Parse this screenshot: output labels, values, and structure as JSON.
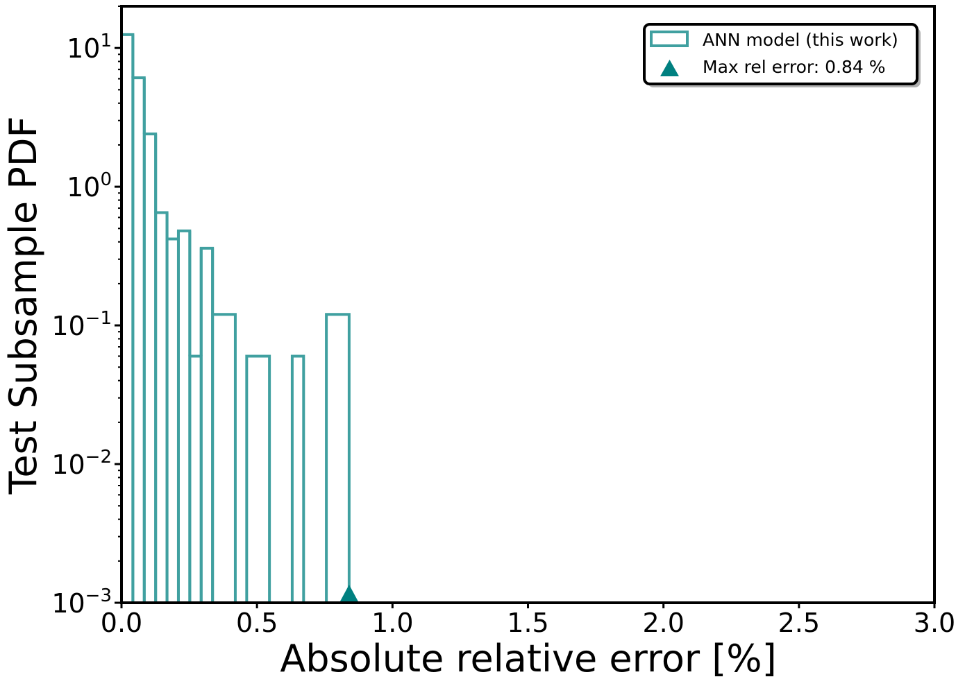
{
  "chart_data": {
    "type": "histogram",
    "xlabel": "Absolute relative error [%]",
    "ylabel": "Test Subsample PDF",
    "xlim": [
      0,
      3
    ],
    "ylim": [
      0.001,
      20
    ],
    "yscale": "log",
    "x_ticks": [
      {
        "value": 0.0,
        "label": "0.0"
      },
      {
        "value": 0.5,
        "label": "0.5"
      },
      {
        "value": 1.0,
        "label": "1.0"
      },
      {
        "value": 1.5,
        "label": "1.5"
      },
      {
        "value": 2.0,
        "label": "2.0"
      },
      {
        "value": 2.5,
        "label": "2.5"
      },
      {
        "value": 3.0,
        "label": "3.0"
      }
    ],
    "y_ticks": [
      {
        "value": 10,
        "base": "10",
        "exp": "1"
      },
      {
        "value": 1,
        "base": "10",
        "exp": "0"
      },
      {
        "value": 0.1,
        "base": "10",
        "exp": "−1"
      },
      {
        "value": 0.01,
        "base": "10",
        "exp": "−2"
      },
      {
        "value": 0.001,
        "base": "10",
        "exp": "−3"
      }
    ],
    "bins": [
      {
        "x0": 0.0,
        "x1": 0.042,
        "value": 12.5
      },
      {
        "x0": 0.042,
        "x1": 0.084,
        "value": 6.1
      },
      {
        "x0": 0.084,
        "x1": 0.126,
        "value": 2.4
      },
      {
        "x0": 0.126,
        "x1": 0.168,
        "value": 0.65
      },
      {
        "x0": 0.168,
        "x1": 0.21,
        "value": 0.42
      },
      {
        "x0": 0.21,
        "x1": 0.252,
        "value": 0.48
      },
      {
        "x0": 0.252,
        "x1": 0.294,
        "value": 0.06
      },
      {
        "x0": 0.294,
        "x1": 0.336,
        "value": 0.36
      },
      {
        "x0": 0.336,
        "x1": 0.42,
        "value": 0.12
      },
      {
        "x0": 0.42,
        "x1": 0.462,
        "value": 0
      },
      {
        "x0": 0.462,
        "x1": 0.546,
        "value": 0.06
      },
      {
        "x0": 0.546,
        "x1": 0.63,
        "value": 0
      },
      {
        "x0": 0.63,
        "x1": 0.672,
        "value": 0.06
      },
      {
        "x0": 0.672,
        "x1": 0.756,
        "value": 0
      },
      {
        "x0": 0.756,
        "x1": 0.84,
        "value": 0.12
      }
    ],
    "marker": {
      "x": 0.84,
      "y": 0.00115,
      "shape": "triangle"
    },
    "colors": {
      "histogram": "#40a0a0",
      "marker": "#008080"
    },
    "legend": {
      "position": "top-right",
      "entries": [
        {
          "label": "ANN model (this work)",
          "symbol": "step-box"
        },
        {
          "label": "Max rel error: 0.84 %",
          "symbol": "triangle"
        }
      ]
    },
    "grid": false
  }
}
